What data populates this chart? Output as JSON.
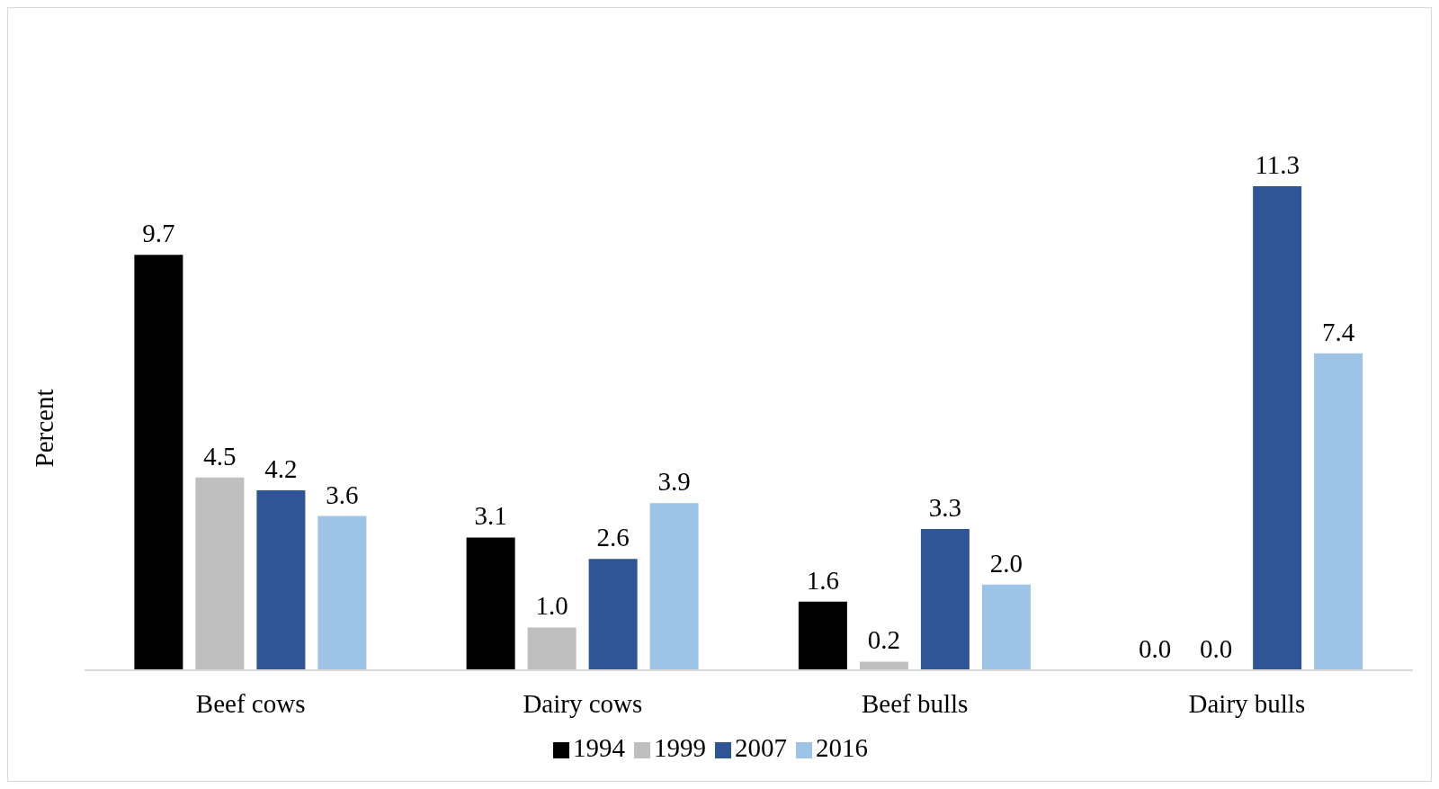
{
  "chart_data": {
    "type": "bar",
    "ylabel": "Percent",
    "categories": [
      "Beef cows",
      "Dairy cows",
      "Beef bulls",
      "Dairy bulls"
    ],
    "series": [
      {
        "name": "1994",
        "color": "#000000",
        "values": [
          9.7,
          3.1,
          1.6,
          0.0
        ],
        "value_labels": [
          "9.7",
          "3.1",
          "1.6",
          "0.0"
        ]
      },
      {
        "name": "1999",
        "color": "#bfbfbf",
        "values": [
          4.5,
          1.0,
          0.2,
          0.0
        ],
        "value_labels": [
          "4.5",
          "1.0",
          "0.2",
          "0.0"
        ]
      },
      {
        "name": "2007",
        "color": "#2f5597",
        "values": [
          4.2,
          2.6,
          3.3,
          11.3
        ],
        "value_labels": [
          "4.2",
          "2.6",
          "3.3",
          "11.3"
        ]
      },
      {
        "name": "2016",
        "color": "#9dc3e6",
        "values": [
          3.6,
          3.9,
          2.0,
          7.4
        ],
        "value_labels": [
          "3.6",
          "3.9",
          "2.0",
          "7.4"
        ]
      }
    ],
    "tick_labels": "x",
    "grid": false,
    "legend": "bottom"
  }
}
